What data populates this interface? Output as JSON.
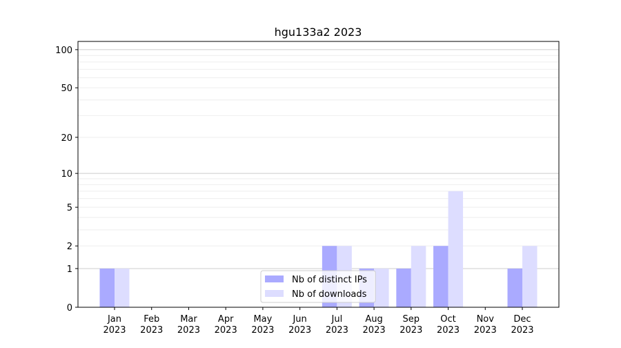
{
  "chart_data": {
    "type": "bar",
    "title": "hgu133a2 2023",
    "categories": [
      "Jan\n2023",
      "Feb\n2023",
      "Mar\n2023",
      "Apr\n2023",
      "May\n2023",
      "Jun\n2023",
      "Jul\n2023",
      "Aug\n2023",
      "Sep\n2023",
      "Oct\n2023",
      "Nov\n2023",
      "Dec\n2023"
    ],
    "series": [
      {
        "name": "Nb of distinct IPs",
        "color": "#aaaaff",
        "values": [
          1,
          0,
          0,
          0,
          0,
          0,
          2,
          1,
          1,
          2,
          0,
          1
        ]
      },
      {
        "name": "Nb of downloads",
        "color": "#ddddff",
        "values": [
          1,
          0,
          0,
          0,
          0,
          0,
          2,
          1,
          2,
          7,
          0,
          2
        ]
      }
    ],
    "yscale": "log(1+y)",
    "yticks": [
      0,
      1,
      2,
      5,
      10,
      20,
      50,
      100
    ],
    "ylim": [
      0,
      116
    ],
    "grid": true,
    "legend": "bottom-center"
  }
}
